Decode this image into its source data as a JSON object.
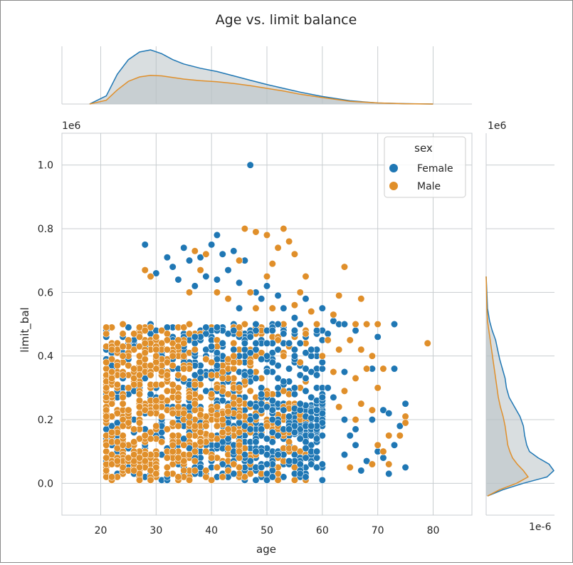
{
  "colors": {
    "female": "#1f77b4",
    "male": "#e08f2a",
    "grid": "#c8cdd0",
    "fill": "#b9c3c7"
  },
  "chart_data": {
    "type": "scatter",
    "title": "Age vs. limit balance",
    "xlabel": "age",
    "ylabel": "limit_bal",
    "xlim": [
      13,
      87
    ],
    "ylim": [
      -0.1,
      1.1
    ],
    "x_ticks": [
      20,
      30,
      40,
      50,
      60,
      70,
      80
    ],
    "y_ticks": [
      0.0,
      0.2,
      0.4,
      0.6,
      0.8,
      1.0
    ],
    "y_tick_labels": [
      "0.0",
      "0.2",
      "0.4",
      "0.6",
      "0.8",
      "1.0"
    ],
    "y_offset_text": "1e6",
    "marginal_y_offset_text": "1e6",
    "marginal_x_offset_text": "1e-6",
    "grid": true,
    "legend": {
      "title": "sex",
      "position": "top-right",
      "entries": [
        "Female",
        "Male"
      ]
    },
    "series": [
      {
        "name": "Female",
        "dense_region": {
          "age_min": 21,
          "age_max": 60,
          "limit_min": 0.01,
          "limit_max": 0.5
        },
        "points": [
          [
            47,
            1.0
          ],
          [
            41,
            0.78
          ],
          [
            28,
            0.75
          ],
          [
            35,
            0.74
          ],
          [
            40,
            0.75
          ],
          [
            42,
            0.72
          ],
          [
            44,
            0.73
          ],
          [
            38,
            0.71
          ],
          [
            32,
            0.71
          ],
          [
            46,
            0.7
          ],
          [
            33,
            0.68
          ],
          [
            36,
            0.7
          ],
          [
            43,
            0.67
          ],
          [
            39,
            0.65
          ],
          [
            41,
            0.64
          ],
          [
            45,
            0.63
          ],
          [
            30,
            0.66
          ],
          [
            48,
            0.6
          ],
          [
            50,
            0.62
          ],
          [
            52,
            0.59
          ],
          [
            57,
            0.58
          ],
          [
            45,
            0.55
          ],
          [
            53,
            0.55
          ],
          [
            60,
            0.55
          ],
          [
            62,
            0.51
          ],
          [
            63,
            0.5
          ],
          [
            64,
            0.5
          ],
          [
            73,
            0.5
          ],
          [
            55,
            0.52
          ],
          [
            61,
            0.47
          ],
          [
            65,
            0.45
          ],
          [
            66,
            0.48
          ],
          [
            70,
            0.46
          ],
          [
            69,
            0.36
          ],
          [
            73,
            0.36
          ],
          [
            75,
            0.25
          ],
          [
            71,
            0.23
          ],
          [
            69,
            0.2
          ],
          [
            72,
            0.22
          ],
          [
            74,
            0.18
          ],
          [
            73,
            0.12
          ],
          [
            70,
            0.1
          ],
          [
            71,
            0.08
          ],
          [
            75,
            0.05
          ],
          [
            66,
            0.12
          ],
          [
            66,
            0.17
          ],
          [
            68,
            0.07
          ],
          [
            67,
            0.04
          ],
          [
            64,
            0.09
          ],
          [
            65,
            0.15
          ],
          [
            62,
            0.27
          ],
          [
            63,
            0.24
          ],
          [
            64,
            0.2
          ],
          [
            61,
            0.3
          ],
          [
            60,
            0.38
          ],
          [
            58,
            0.42
          ],
          [
            59,
            0.34
          ],
          [
            55,
            0.48
          ],
          [
            56,
            0.44
          ],
          [
            72,
            0.03
          ],
          [
            64,
            0.35
          ],
          [
            49,
            0.58
          ],
          [
            37,
            0.62
          ],
          [
            34,
            0.64
          ]
        ]
      },
      {
        "name": "Male",
        "dense_region": {
          "age_min": 21,
          "age_max": 57,
          "limit_min": 0.01,
          "limit_max": 0.5
        },
        "points": [
          [
            46,
            0.8
          ],
          [
            48,
            0.79
          ],
          [
            53,
            0.8
          ],
          [
            50,
            0.78
          ],
          [
            54,
            0.76
          ],
          [
            52,
            0.74
          ],
          [
            51,
            0.69
          ],
          [
            55,
            0.72
          ],
          [
            64,
            0.68
          ],
          [
            50,
            0.65
          ],
          [
            57,
            0.65
          ],
          [
            45,
            0.7
          ],
          [
            37,
            0.73
          ],
          [
            39,
            0.72
          ],
          [
            28,
            0.67
          ],
          [
            29,
            0.65
          ],
          [
            38,
            0.67
          ],
          [
            47,
            0.6
          ],
          [
            56,
            0.6
          ],
          [
            63,
            0.59
          ],
          [
            67,
            0.58
          ],
          [
            51,
            0.55
          ],
          [
            55,
            0.56
          ],
          [
            58,
            0.54
          ],
          [
            62,
            0.53
          ],
          [
            66,
            0.5
          ],
          [
            68,
            0.5
          ],
          [
            70,
            0.5
          ],
          [
            79,
            0.44
          ],
          [
            65,
            0.45
          ],
          [
            67,
            0.42
          ],
          [
            69,
            0.4
          ],
          [
            68,
            0.36
          ],
          [
            71,
            0.36
          ],
          [
            70,
            0.3
          ],
          [
            75,
            0.21
          ],
          [
            75,
            0.19
          ],
          [
            74,
            0.15
          ],
          [
            72,
            0.15
          ],
          [
            71,
            0.1
          ],
          [
            69,
            0.06
          ],
          [
            72,
            0.06
          ],
          [
            70,
            0.12
          ],
          [
            65,
            0.05
          ],
          [
            66,
            0.2
          ],
          [
            63,
            0.24
          ],
          [
            67,
            0.25
          ],
          [
            69,
            0.23
          ],
          [
            64,
            0.29
          ],
          [
            66,
            0.33
          ],
          [
            62,
            0.35
          ],
          [
            60,
            0.4
          ],
          [
            63,
            0.42
          ],
          [
            57,
            0.47
          ],
          [
            61,
            0.45
          ],
          [
            59,
            0.5
          ],
          [
            48,
            0.55
          ],
          [
            43,
            0.58
          ],
          [
            41,
            0.6
          ],
          [
            36,
            0.6
          ]
        ]
      }
    ],
    "marginal_x": {
      "series": [
        {
          "name": "Female",
          "x": [
            18,
            21,
            23,
            25,
            27,
            29,
            31,
            33,
            35,
            38,
            41,
            44,
            47,
            50,
            53,
            56,
            60,
            65,
            70,
            75,
            80
          ],
          "density": [
            0,
            0.15,
            0.55,
            0.82,
            0.96,
            1.0,
            0.93,
            0.82,
            0.74,
            0.66,
            0.6,
            0.52,
            0.44,
            0.36,
            0.29,
            0.22,
            0.14,
            0.06,
            0.02,
            0.006,
            0
          ]
        },
        {
          "name": "Male",
          "x": [
            18,
            21,
            23,
            25,
            27,
            29,
            31,
            33,
            35,
            38,
            41,
            44,
            47,
            50,
            53,
            56,
            60,
            65,
            70,
            75,
            80
          ],
          "density": [
            0,
            0.07,
            0.26,
            0.42,
            0.5,
            0.53,
            0.52,
            0.49,
            0.46,
            0.43,
            0.41,
            0.38,
            0.34,
            0.29,
            0.24,
            0.18,
            0.12,
            0.05,
            0.02,
            0.005,
            0
          ]
        }
      ]
    },
    "marginal_y": {
      "series": [
        {
          "name": "Female",
          "y": [
            -0.04,
            -0.02,
            0.0,
            0.02,
            0.04,
            0.06,
            0.08,
            0.1,
            0.12,
            0.15,
            0.18,
            0.21,
            0.24,
            0.27,
            0.3,
            0.33,
            0.36,
            0.39,
            0.42,
            0.45,
            0.48,
            0.51,
            0.55,
            0.6,
            0.65
          ],
          "density": [
            0.02,
            0.25,
            0.55,
            0.9,
            1.0,
            0.93,
            0.77,
            0.64,
            0.6,
            0.57,
            0.55,
            0.5,
            0.42,
            0.34,
            0.3,
            0.28,
            0.24,
            0.2,
            0.17,
            0.14,
            0.09,
            0.05,
            0.02,
            0.01,
            0
          ]
        },
        {
          "name": "Male",
          "y": [
            -0.04,
            -0.02,
            0.0,
            0.02,
            0.04,
            0.06,
            0.08,
            0.1,
            0.12,
            0.15,
            0.18,
            0.21,
            0.24,
            0.27,
            0.3,
            0.33,
            0.36,
            0.39,
            0.42,
            0.45,
            0.48,
            0.51,
            0.55,
            0.6,
            0.65
          ],
          "density": [
            0.02,
            0.2,
            0.45,
            0.62,
            0.55,
            0.46,
            0.39,
            0.35,
            0.32,
            0.3,
            0.28,
            0.25,
            0.21,
            0.18,
            0.16,
            0.14,
            0.12,
            0.1,
            0.08,
            0.06,
            0.04,
            0.02,
            0.01,
            0.005,
            0
          ]
        }
      ]
    }
  }
}
